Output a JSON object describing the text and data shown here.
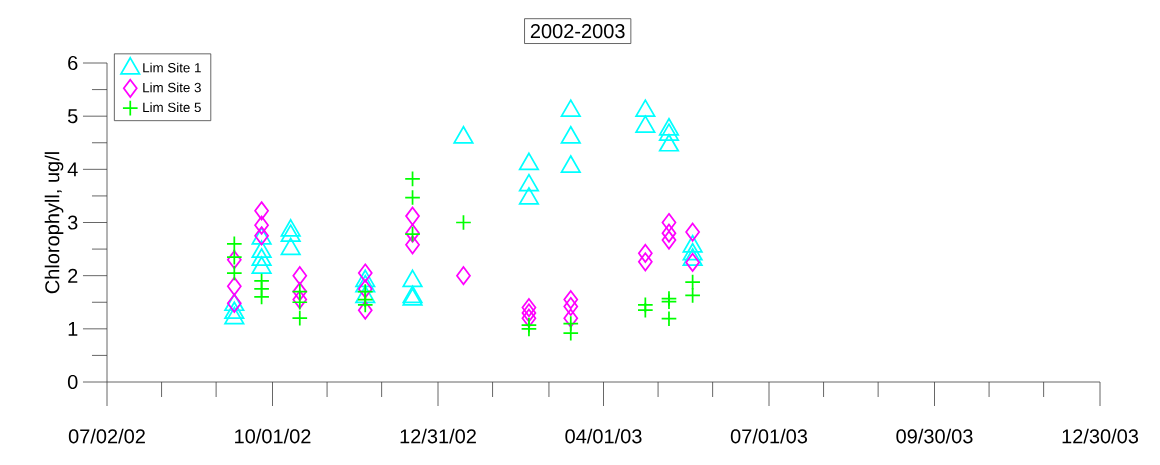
{
  "chart_data": {
    "type": "scatter",
    "title": "2002-2003",
    "ylabel": "Chlorophyll, ug/l",
    "xlim": [
      "2002-07-02",
      "2003-12-30"
    ],
    "ylim": [
      0,
      6
    ],
    "xticks": [
      {
        "value": "2002-07-02",
        "label": "07/02/02"
      },
      {
        "value": "2002-08-01",
        "label": null
      },
      {
        "value": "2002-08-31",
        "label": null
      },
      {
        "value": "2002-10-01",
        "label": "10/01/02"
      },
      {
        "value": "2002-10-31",
        "label": null
      },
      {
        "value": "2002-11-30",
        "label": null
      },
      {
        "value": "2002-12-31",
        "label": "12/31/02"
      },
      {
        "value": "2003-01-30",
        "label": null
      },
      {
        "value": "2003-03-02",
        "label": null
      },
      {
        "value": "2003-04-01",
        "label": "04/01/03"
      },
      {
        "value": "2003-05-01",
        "label": null
      },
      {
        "value": "2003-05-31",
        "label": null
      },
      {
        "value": "2003-07-01",
        "label": "07/01/03"
      },
      {
        "value": "2003-07-31",
        "label": null
      },
      {
        "value": "2003-08-30",
        "label": null
      },
      {
        "value": "2003-09-30",
        "label": "09/30/03"
      },
      {
        "value": "2003-10-30",
        "label": null
      },
      {
        "value": "2003-11-29",
        "label": null
      },
      {
        "value": "2003-12-30",
        "label": "12/30/03"
      }
    ],
    "yticks": [
      0,
      {
        "value": 0.5,
        "label": null
      },
      1,
      {
        "value": 1.5,
        "label": null
      },
      2,
      {
        "value": 2.5,
        "label": null
      },
      3,
      {
        "value": 3.5,
        "label": null
      },
      4,
      {
        "value": 4.5,
        "label": null
      },
      5,
      {
        "value": 5.5,
        "label": null
      },
      6
    ],
    "legend": "top left",
    "series": [
      {
        "name": "Lim Site 1",
        "color": "#00ffff",
        "marker": "triangle",
        "x": [
          "2002-09-10",
          "2002-09-10",
          "2002-09-10",
          "2002-09-25",
          "2002-09-25",
          "2002-09-25",
          "2002-09-25",
          "2002-10-11",
          "2002-10-11",
          "2002-10-11",
          "2002-11-21",
          "2002-11-21",
          "2002-11-21",
          "2002-12-17",
          "2002-12-17",
          "2002-12-17",
          "2003-01-14",
          "2003-02-19",
          "2003-02-19",
          "2003-02-19",
          "2003-03-14",
          "2003-03-14",
          "2003-03-14",
          "2003-04-24",
          "2003-04-24",
          "2003-05-07",
          "2003-05-07",
          "2003-05-07",
          "2003-05-20",
          "2003-05-20",
          "2003-05-20"
        ],
        "values": [
          1.45,
          1.3,
          1.2,
          2.7,
          2.45,
          2.3,
          2.15,
          2.85,
          2.75,
          2.5,
          1.9,
          1.8,
          1.6,
          1.9,
          1.6,
          1.55,
          4.6,
          4.1,
          3.7,
          3.45,
          5.1,
          4.6,
          4.05,
          5.1,
          4.8,
          4.75,
          4.65,
          4.45,
          2.55,
          2.4,
          2.3
        ]
      },
      {
        "name": "Lim Site 3",
        "color": "#ff00ff",
        "marker": "diamond",
        "x": [
          "2002-09-10",
          "2002-09-10",
          "2002-09-10",
          "2002-09-25",
          "2002-09-25",
          "2002-09-25",
          "2002-10-16",
          "2002-10-16",
          "2002-10-16",
          "2002-11-21",
          "2002-11-21",
          "2002-11-21",
          "2002-12-17",
          "2002-12-17",
          "2002-12-17",
          "2003-01-14",
          "2003-02-19",
          "2003-02-19",
          "2003-02-19",
          "2003-03-14",
          "2003-03-14",
          "2003-03-14",
          "2003-04-24",
          "2003-04-24",
          "2003-05-07",
          "2003-05-07",
          "2003-05-07",
          "2003-05-20",
          "2003-05-20"
        ],
        "values": [
          2.3,
          1.8,
          1.48,
          3.22,
          2.95,
          2.75,
          2.0,
          1.7,
          1.55,
          2.05,
          1.75,
          1.35,
          3.12,
          2.8,
          2.58,
          2.0,
          1.4,
          1.3,
          1.2,
          1.55,
          1.42,
          1.2,
          2.42,
          2.26,
          3.0,
          2.8,
          2.67,
          2.82,
          2.25
        ]
      },
      {
        "name": "Lim Site 5",
        "color": "#00ff00",
        "marker": "cross",
        "x": [
          "2002-09-10",
          "2002-09-10",
          "2002-09-10",
          "2002-09-25",
          "2002-09-25",
          "2002-09-25",
          "2002-10-16",
          "2002-10-16",
          "2002-10-16",
          "2002-11-21",
          "2002-11-21",
          "2002-11-21",
          "2002-12-17",
          "2002-12-17",
          "2002-12-17",
          "2003-01-14",
          "2003-02-19",
          "2003-02-19",
          "2003-03-14",
          "2003-03-14",
          "2003-04-24",
          "2003-04-24",
          "2003-05-07",
          "2003-05-07",
          "2003-05-07",
          "2003-05-20",
          "2003-05-20"
        ],
        "values": [
          2.6,
          2.35,
          2.05,
          1.9,
          1.75,
          1.6,
          1.7,
          1.5,
          1.2,
          1.7,
          1.55,
          1.45,
          3.82,
          3.47,
          2.78,
          3.0,
          1.07,
          1.0,
          1.1,
          0.92,
          1.45,
          1.35,
          1.57,
          1.51,
          1.19,
          1.88,
          1.63
        ]
      }
    ]
  }
}
